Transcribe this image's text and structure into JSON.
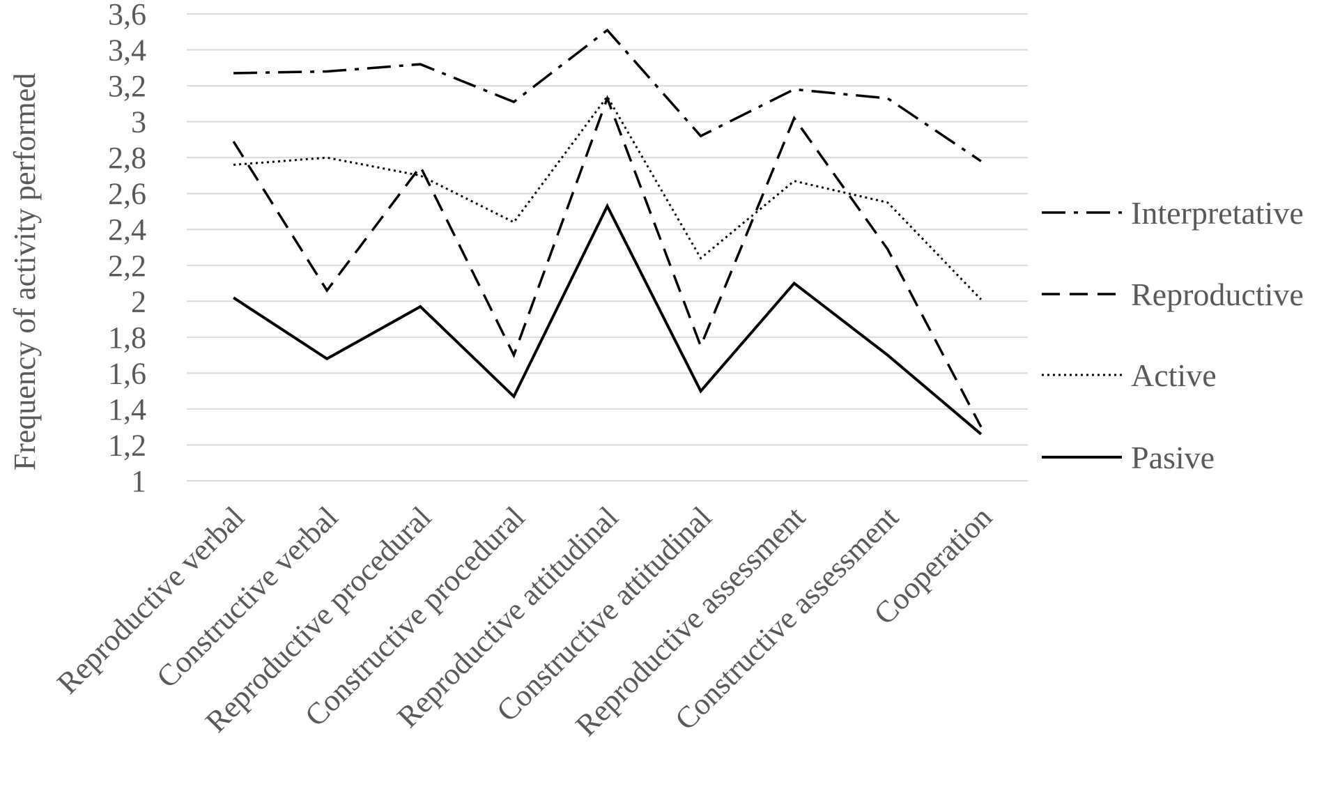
{
  "chart_data": {
    "type": "line",
    "title": "",
    "xlabel": "",
    "ylabel": "Frequency of activity performed",
    "ylim": [
      1,
      3.6
    ],
    "ytick_step": 0.2,
    "yticks": [
      "1",
      "1,2",
      "1,4",
      "1,6",
      "1,8",
      "2",
      "2,2",
      "2,4",
      "2,6",
      "2,8",
      "3",
      "3,2",
      "3,4",
      "3,6"
    ],
    "grid": true,
    "legend_position": "right",
    "categories": [
      "Reproductive verbal",
      "Constructive verbal",
      "Reproductive procedural",
      "Constructive procedural",
      "Reproductive attitudinal",
      "Constructive attitudinal",
      "Reproductive assessment",
      "Constructive assessment",
      "Cooperation"
    ],
    "series": [
      {
        "name": "Interpretative",
        "dash": "dash-dot",
        "color": "#000000",
        "values": [
          3.27,
          3.28,
          3.32,
          3.11,
          3.51,
          2.92,
          3.18,
          3.13,
          2.78
        ]
      },
      {
        "name": "Reproductive",
        "dash": "dash",
        "color": "#000000",
        "values": [
          2.89,
          2.06,
          2.75,
          1.7,
          3.13,
          1.75,
          3.02,
          2.29,
          1.3
        ]
      },
      {
        "name": "Active",
        "dash": "dot",
        "color": "#000000",
        "values": [
          2.76,
          2.8,
          2.7,
          2.44,
          3.14,
          2.24,
          2.67,
          2.55,
          2.01
        ]
      },
      {
        "name": "Pasive",
        "dash": "solid",
        "color": "#000000",
        "values": [
          2.02,
          1.68,
          1.97,
          1.47,
          2.53,
          1.5,
          2.1,
          1.7,
          1.26
        ]
      }
    ]
  }
}
